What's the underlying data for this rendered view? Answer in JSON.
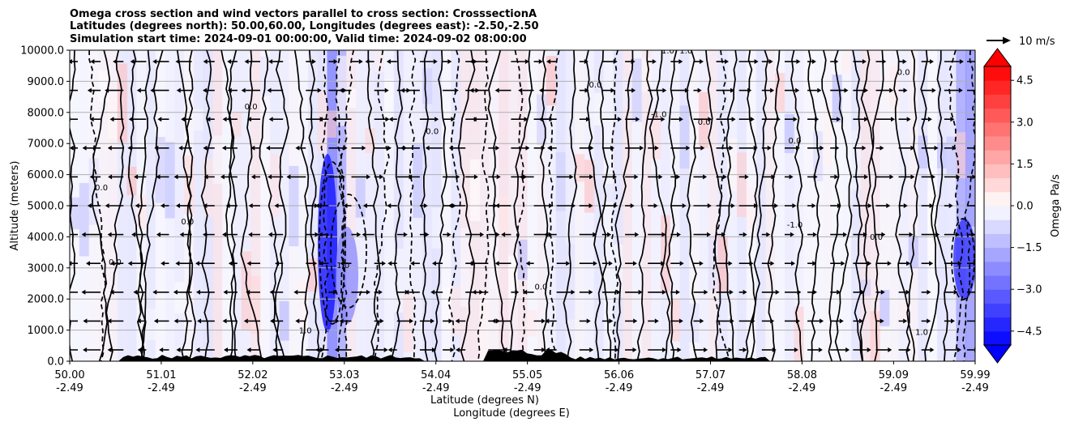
{
  "chart_data": {
    "type": "contour",
    "title_lines": [
      "Omega cross section and wind vectors parallel to cross section: CrosssectionA",
      "Latitudes (degrees north): 50.00,60.00, Longitudes (degrees east): -2.50,-2.50",
      "Simulation start time: 2024-09-01 00:00:00, Valid time: 2024-09-02 08:00:00"
    ],
    "xlabel_lines": [
      "Latitude (degrees N)",
      "Longitude (degrees E)"
    ],
    "ylabel": "Altitude (meters)",
    "xlim": [
      50.0,
      59.99
    ],
    "ylim": [
      0,
      10000
    ],
    "x_ticks": [
      {
        "lat": "50.00",
        "lon": "-2.49",
        "value": 50.0
      },
      {
        "lat": "51.01",
        "lon": "-2.49",
        "value": 51.01
      },
      {
        "lat": "52.02",
        "lon": "-2.49",
        "value": 52.02
      },
      {
        "lat": "53.03",
        "lon": "-2.49",
        "value": 53.03
      },
      {
        "lat": "54.04",
        "lon": "-2.49",
        "value": 54.04
      },
      {
        "lat": "55.05",
        "lon": "-2.49",
        "value": 55.05
      },
      {
        "lat": "56.06",
        "lon": "-2.49",
        "value": 56.06
      },
      {
        "lat": "57.07",
        "lon": "-2.49",
        "value": 57.07
      },
      {
        "lat": "58.08",
        "lon": "-2.49",
        "value": 58.08
      },
      {
        "lat": "59.09",
        "lon": "-2.49",
        "value": 59.09
      },
      {
        "lat": "59.99",
        "lon": "-2.49",
        "value": 59.99
      }
    ],
    "y_ticks": [
      {
        "label": "0.0",
        "value": 0
      },
      {
        "label": "1000.0",
        "value": 1000
      },
      {
        "label": "2000.0",
        "value": 2000
      },
      {
        "label": "3000.0",
        "value": 3000
      },
      {
        "label": "4000.0",
        "value": 4000
      },
      {
        "label": "5000.0",
        "value": 5000
      },
      {
        "label": "6000.0",
        "value": 6000
      },
      {
        "label": "7000.0",
        "value": 7000
      },
      {
        "label": "8000.0",
        "value": 8000
      },
      {
        "label": "9000.0",
        "value": 9000
      },
      {
        "label": "10000.0",
        "value": 10000
      }
    ],
    "grid": true,
    "colorbar": {
      "label": "Omega Pa/s",
      "range": [
        -5,
        5
      ],
      "ticks": [
        {
          "label": "4.5",
          "value": 4.5
        },
        {
          "label": "3.0",
          "value": 3.0
        },
        {
          "label": "1.5",
          "value": 1.5
        },
        {
          "label": "0.0",
          "value": 0.0
        },
        {
          "label": "−1.5",
          "value": -1.5
        },
        {
          "label": "−3.0",
          "value": -3.0
        },
        {
          "label": "−4.5",
          "value": -4.5
        }
      ],
      "colormap": "bwr",
      "extend": "both"
    },
    "quiver_key": {
      "label": "10 m/s",
      "speed": 10
    },
    "contour_levels": [
      -1.0,
      0.0,
      1.0
    ],
    "contour_labels": [
      {
        "text": "0.0",
        "lat": 50.35,
        "alt": 5500
      },
      {
        "text": "-1.0",
        "lat": 56.5,
        "alt": 7850
      },
      {
        "text": "0.0",
        "lat": 55.8,
        "alt": 8800
      },
      {
        "text": "1.0",
        "lat": 56.6,
        "alt": 9900
      },
      {
        "text": "1.0",
        "lat": 56.8,
        "alt": 9900
      },
      {
        "text": "0.0",
        "lat": 57.0,
        "alt": 7600
      },
      {
        "text": "0.0",
        "lat": 52.0,
        "alt": 8100
      },
      {
        "text": "0.0",
        "lat": 54.0,
        "alt": 7300
      },
      {
        "text": "0.0",
        "lat": 58.0,
        "alt": 7000
      },
      {
        "text": "0.0",
        "lat": 59.2,
        "alt": 9200
      },
      {
        "text": "0.0",
        "lat": 51.3,
        "alt": 4400
      },
      {
        "text": "0.0",
        "lat": 58.9,
        "alt": 3900
      },
      {
        "text": "-1.0",
        "lat": 58.0,
        "alt": 4300
      },
      {
        "text": "1.0",
        "lat": 59.4,
        "alt": 850
      },
      {
        "text": "0.0",
        "lat": 55.2,
        "alt": 2300
      },
      {
        "text": "-1.0",
        "lat": 53.0,
        "alt": 3000
      },
      {
        "text": "0.0",
        "lat": 50.5,
        "alt": 3100
      },
      {
        "text": "1.0",
        "lat": 52.6,
        "alt": 900
      }
    ]
  }
}
